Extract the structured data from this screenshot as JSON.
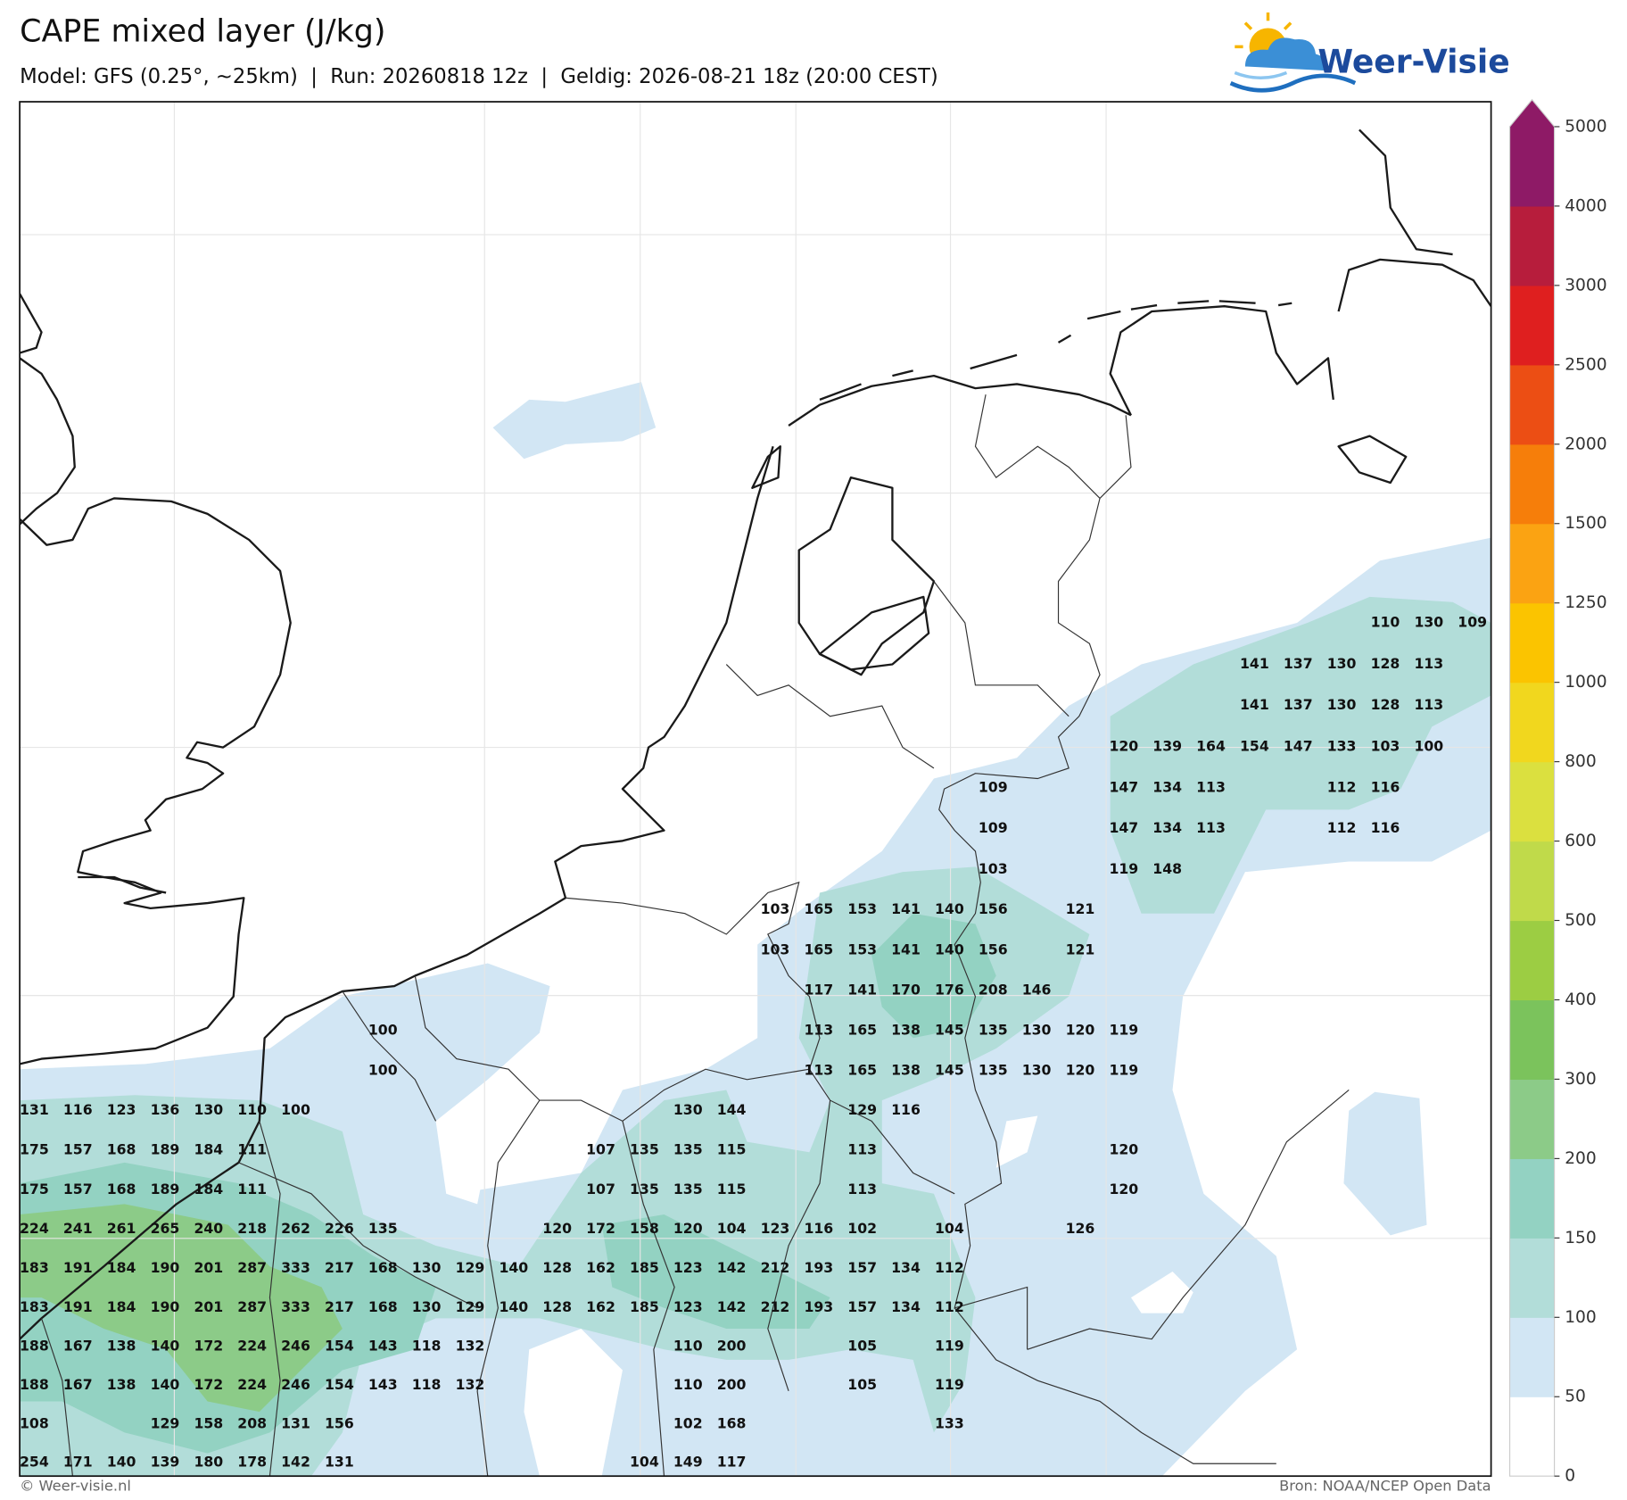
{
  "title": "CAPE mixed layer (J/kg)",
  "subtitle": "Model: GFS (0.25°, ~25km)  |  Run: 20260818 12z  |  Geldig: 2026-08-21 18z (20:00 CEST)",
  "logo": "Weer-Visie",
  "footer": {
    "left": "© Weer-visie.nl",
    "right": "Bron: NOAA/NCEP Open Data"
  },
  "map": {
    "colorbar": {
      "ticks": [
        0,
        50,
        100,
        150,
        200,
        300,
        400,
        500,
        600,
        800,
        1000,
        1250,
        1500,
        2000,
        2500,
        3000,
        4000,
        5000
      ],
      "colors": [
        "#ffffff",
        "#d2e6f4",
        "#b2ddd9",
        "#93d2c2",
        "#8ccb88",
        "#7bc35c",
        "#9ccd43",
        "#c0da4a",
        "#dbe03f",
        "#f1d71e",
        "#fbc400",
        "#fba312",
        "#f67e0a",
        "#ec4e14",
        "#df1f1f",
        "#b71d3c",
        "#8e1a66"
      ]
    },
    "values": [
      [
        null,
        null,
        null,
        null,
        null,
        null,
        null,
        null,
        null,
        null,
        null,
        null,
        null,
        null,
        null,
        null,
        null,
        null,
        null,
        null,
        null,
        null,
        null,
        null,
        null,
        null,
        null,
        null,
        null,
        null,
        null,
        110,
        130,
        109
      ],
      [
        null,
        null,
        null,
        null,
        null,
        null,
        null,
        null,
        null,
        null,
        null,
        null,
        null,
        null,
        null,
        null,
        null,
        null,
        null,
        null,
        null,
        null,
        null,
        null,
        null,
        null,
        null,
        null,
        141,
        137,
        130,
        128,
        113,
        null
      ],
      [
        null,
        null,
        null,
        null,
        null,
        null,
        null,
        null,
        null,
        null,
        null,
        null,
        null,
        null,
        null,
        null,
        null,
        null,
        null,
        null,
        null,
        null,
        null,
        null,
        null,
        null,
        null,
        null,
        141,
        137,
        130,
        128,
        113,
        null
      ],
      [
        null,
        null,
        null,
        null,
        null,
        null,
        null,
        null,
        null,
        null,
        null,
        null,
        null,
        null,
        null,
        null,
        null,
        null,
        null,
        null,
        null,
        null,
        null,
        null,
        null,
        120,
        139,
        164,
        154,
        147,
        133,
        103,
        100,
        null
      ],
      [
        null,
        null,
        null,
        null,
        null,
        null,
        null,
        null,
        null,
        null,
        null,
        null,
        null,
        null,
        null,
        null,
        null,
        null,
        null,
        null,
        null,
        null,
        109,
        null,
        null,
        147,
        134,
        113,
        null,
        null,
        112,
        116,
        null,
        null
      ],
      [
        null,
        null,
        null,
        null,
        null,
        null,
        null,
        null,
        null,
        null,
        null,
        null,
        null,
        null,
        null,
        null,
        null,
        null,
        null,
        null,
        null,
        null,
        109,
        null,
        null,
        147,
        134,
        113,
        null,
        null,
        112,
        116,
        null,
        null
      ],
      [
        null,
        null,
        null,
        null,
        null,
        null,
        null,
        null,
        null,
        null,
        null,
        null,
        null,
        null,
        null,
        null,
        null,
        null,
        null,
        null,
        null,
        null,
        103,
        null,
        null,
        119,
        148,
        null,
        null,
        null,
        null,
        null,
        null,
        null
      ],
      [
        null,
        null,
        null,
        null,
        null,
        null,
        null,
        null,
        null,
        null,
        null,
        null,
        null,
        null,
        null,
        null,
        null,
        103,
        165,
        153,
        141,
        140,
        156,
        null,
        121,
        null,
        null,
        null,
        null,
        null,
        null,
        null,
        null,
        null
      ],
      [
        null,
        null,
        null,
        null,
        null,
        null,
        null,
        null,
        null,
        null,
        null,
        null,
        null,
        null,
        null,
        null,
        null,
        103,
        165,
        153,
        141,
        140,
        156,
        null,
        121,
        null,
        null,
        null,
        null,
        null,
        null,
        null,
        null,
        null
      ],
      [
        null,
        null,
        null,
        null,
        null,
        null,
        null,
        null,
        null,
        null,
        null,
        null,
        null,
        null,
        null,
        null,
        null,
        null,
        117,
        141,
        170,
        176,
        208,
        146,
        null,
        null,
        null,
        null,
        null,
        null,
        null,
        null,
        null,
        null
      ],
      [
        null,
        null,
        null,
        null,
        null,
        null,
        null,
        null,
        100,
        null,
        null,
        null,
        null,
        null,
        null,
        null,
        null,
        null,
        113,
        165,
        138,
        145,
        135,
        130,
        120,
        119,
        null,
        null,
        null,
        null,
        null,
        null,
        null,
        null
      ],
      [
        null,
        null,
        null,
        null,
        null,
        null,
        null,
        null,
        100,
        null,
        null,
        null,
        null,
        null,
        null,
        null,
        null,
        null,
        113,
        165,
        138,
        145,
        135,
        130,
        120,
        119,
        null,
        null,
        null,
        null,
        null,
        null,
        null,
        null
      ],
      [
        131,
        116,
        123,
        136,
        130,
        110,
        100,
        null,
        null,
        null,
        null,
        null,
        null,
        null,
        null,
        130,
        144,
        null,
        null,
        129,
        116,
        null,
        null,
        null,
        null,
        null,
        null,
        null,
        null,
        null,
        null,
        null,
        null,
        null
      ],
      [
        175,
        157,
        168,
        189,
        184,
        111,
        null,
        null,
        null,
        null,
        null,
        null,
        null,
        107,
        135,
        135,
        115,
        null,
        null,
        113,
        null,
        null,
        null,
        null,
        null,
        120,
        null,
        null,
        null,
        null,
        null,
        null,
        null,
        null
      ],
      [
        175,
        157,
        168,
        189,
        184,
        111,
        null,
        null,
        null,
        null,
        null,
        null,
        null,
        107,
        135,
        135,
        115,
        null,
        null,
        113,
        null,
        null,
        null,
        null,
        null,
        120,
        null,
        null,
        null,
        null,
        null,
        null,
        null,
        null
      ],
      [
        224,
        241,
        261,
        265,
        240,
        218,
        262,
        226,
        135,
        null,
        null,
        null,
        120,
        172,
        158,
        120,
        104,
        123,
        116,
        102,
        null,
        104,
        null,
        null,
        126,
        null,
        null,
        null,
        null,
        null,
        null,
        null,
        null,
        null
      ],
      [
        183,
        191,
        184,
        190,
        201,
        287,
        333,
        217,
        168,
        130,
        129,
        140,
        128,
        162,
        185,
        123,
        142,
        212,
        193,
        157,
        134,
        112,
        null,
        null,
        null,
        null,
        null,
        null,
        null,
        null,
        null,
        null,
        null,
        null
      ],
      [
        183,
        191,
        184,
        190,
        201,
        287,
        333,
        217,
        168,
        130,
        129,
        140,
        128,
        162,
        185,
        123,
        142,
        212,
        193,
        157,
        134,
        112,
        null,
        null,
        null,
        null,
        null,
        null,
        null,
        null,
        null,
        null,
        null,
        null
      ],
      [
        188,
        167,
        138,
        140,
        172,
        224,
        246,
        154,
        143,
        118,
        132,
        null,
        null,
        null,
        null,
        110,
        200,
        null,
        null,
        105,
        null,
        119,
        null,
        null,
        null,
        null,
        null,
        null,
        null,
        null,
        null,
        null,
        null,
        null
      ],
      [
        188,
        167,
        138,
        140,
        172,
        224,
        246,
        154,
        143,
        118,
        132,
        null,
        null,
        null,
        null,
        110,
        200,
        null,
        null,
        105,
        null,
        119,
        null,
        null,
        null,
        null,
        null,
        null,
        null,
        null,
        null,
        null,
        null,
        null
      ],
      [
        108,
        null,
        null,
        129,
        158,
        208,
        131,
        156,
        null,
        null,
        null,
        null,
        null,
        null,
        null,
        102,
        168,
        null,
        null,
        null,
        null,
        133,
        null,
        null,
        null,
        null,
        null,
        null,
        null,
        null,
        null,
        null,
        null,
        null
      ],
      [
        254,
        171,
        140,
        139,
        180,
        178,
        142,
        131,
        null,
        null,
        null,
        null,
        null,
        null,
        104,
        149,
        117,
        null,
        null,
        null,
        null,
        null,
        null,
        null,
        null,
        null,
        null,
        null,
        null,
        null,
        null,
        null,
        null,
        null
      ]
    ]
  }
}
